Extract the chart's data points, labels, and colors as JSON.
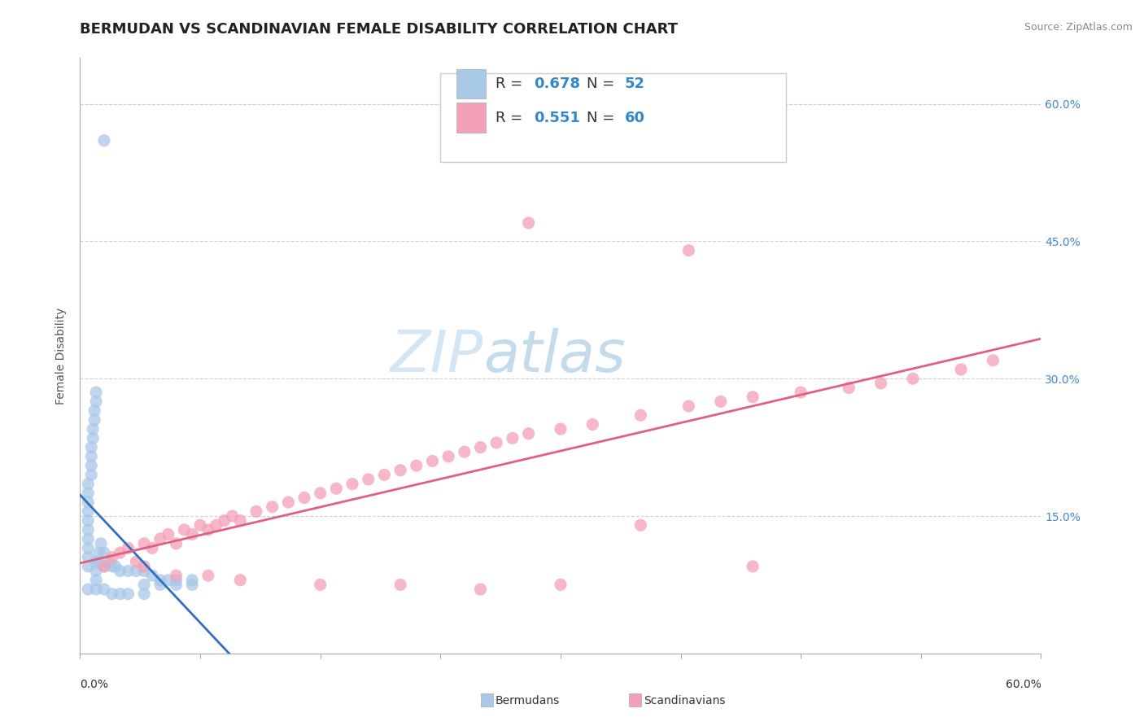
{
  "title": "BERMUDAN VS SCANDINAVIAN FEMALE DISABILITY CORRELATION CHART",
  "source_text": "Source: ZipAtlas.com",
  "ylabel": "Female Disability",
  "ylabel_right_ticks": [
    "15.0%",
    "30.0%",
    "45.0%",
    "60.0%"
  ],
  "ylabel_right_vals": [
    0.15,
    0.3,
    0.45,
    0.6
  ],
  "xmin": 0.0,
  "xmax": 0.6,
  "ymin": 0.0,
  "ymax": 0.65,
  "bermudans_color": "#a8c8e8",
  "scandinavians_color": "#f4a0b8",
  "bermudans_line_color": "#3070c0",
  "scandinavians_line_color": "#e06080",
  "background_color": "#ffffff",
  "grid_color": "#d0d0d0",
  "title_fontsize": 13,
  "axis_label_fontsize": 10,
  "tick_fontsize": 10,
  "legend_fontsize": 13,
  "bermudans_points": [
    [
      0.005,
      0.095
    ],
    [
      0.005,
      0.105
    ],
    [
      0.005,
      0.115
    ],
    [
      0.005,
      0.125
    ],
    [
      0.005,
      0.135
    ],
    [
      0.005,
      0.145
    ],
    [
      0.005,
      0.155
    ],
    [
      0.005,
      0.165
    ],
    [
      0.005,
      0.175
    ],
    [
      0.005,
      0.185
    ],
    [
      0.007,
      0.195
    ],
    [
      0.007,
      0.205
    ],
    [
      0.007,
      0.215
    ],
    [
      0.007,
      0.225
    ],
    [
      0.008,
      0.235
    ],
    [
      0.008,
      0.245
    ],
    [
      0.009,
      0.255
    ],
    [
      0.009,
      0.265
    ],
    [
      0.01,
      0.275
    ],
    [
      0.01,
      0.285
    ],
    [
      0.01,
      0.08
    ],
    [
      0.01,
      0.09
    ],
    [
      0.01,
      0.1
    ],
    [
      0.012,
      0.1
    ],
    [
      0.012,
      0.11
    ],
    [
      0.013,
      0.12
    ],
    [
      0.015,
      0.11
    ],
    [
      0.015,
      0.095
    ],
    [
      0.018,
      0.1
    ],
    [
      0.02,
      0.095
    ],
    [
      0.022,
      0.095
    ],
    [
      0.025,
      0.09
    ],
    [
      0.03,
      0.09
    ],
    [
      0.035,
      0.09
    ],
    [
      0.04,
      0.09
    ],
    [
      0.045,
      0.085
    ],
    [
      0.05,
      0.08
    ],
    [
      0.055,
      0.08
    ],
    [
      0.06,
      0.08
    ],
    [
      0.07,
      0.08
    ],
    [
      0.015,
      0.56
    ],
    [
      0.04,
      0.075
    ],
    [
      0.05,
      0.075
    ],
    [
      0.06,
      0.075
    ],
    [
      0.07,
      0.075
    ],
    [
      0.005,
      0.07
    ],
    [
      0.01,
      0.07
    ],
    [
      0.015,
      0.07
    ],
    [
      0.02,
      0.065
    ],
    [
      0.025,
      0.065
    ],
    [
      0.03,
      0.065
    ],
    [
      0.04,
      0.065
    ]
  ],
  "scandinavians_points": [
    [
      0.015,
      0.095
    ],
    [
      0.02,
      0.105
    ],
    [
      0.025,
      0.11
    ],
    [
      0.03,
      0.115
    ],
    [
      0.035,
      0.1
    ],
    [
      0.04,
      0.12
    ],
    [
      0.045,
      0.115
    ],
    [
      0.05,
      0.125
    ],
    [
      0.055,
      0.13
    ],
    [
      0.06,
      0.12
    ],
    [
      0.065,
      0.135
    ],
    [
      0.07,
      0.13
    ],
    [
      0.075,
      0.14
    ],
    [
      0.08,
      0.135
    ],
    [
      0.085,
      0.14
    ],
    [
      0.09,
      0.145
    ],
    [
      0.095,
      0.15
    ],
    [
      0.1,
      0.145
    ],
    [
      0.11,
      0.155
    ],
    [
      0.12,
      0.16
    ],
    [
      0.13,
      0.165
    ],
    [
      0.14,
      0.17
    ],
    [
      0.15,
      0.175
    ],
    [
      0.16,
      0.18
    ],
    [
      0.17,
      0.185
    ],
    [
      0.18,
      0.19
    ],
    [
      0.19,
      0.195
    ],
    [
      0.2,
      0.2
    ],
    [
      0.21,
      0.205
    ],
    [
      0.22,
      0.21
    ],
    [
      0.23,
      0.215
    ],
    [
      0.24,
      0.22
    ],
    [
      0.25,
      0.225
    ],
    [
      0.26,
      0.23
    ],
    [
      0.27,
      0.235
    ],
    [
      0.28,
      0.24
    ],
    [
      0.3,
      0.245
    ],
    [
      0.32,
      0.25
    ],
    [
      0.35,
      0.26
    ],
    [
      0.38,
      0.27
    ],
    [
      0.4,
      0.275
    ],
    [
      0.42,
      0.28
    ],
    [
      0.45,
      0.285
    ],
    [
      0.48,
      0.29
    ],
    [
      0.5,
      0.295
    ],
    [
      0.52,
      0.3
    ],
    [
      0.55,
      0.31
    ],
    [
      0.57,
      0.32
    ],
    [
      0.04,
      0.095
    ],
    [
      0.06,
      0.085
    ],
    [
      0.08,
      0.085
    ],
    [
      0.1,
      0.08
    ],
    [
      0.15,
      0.075
    ],
    [
      0.2,
      0.075
    ],
    [
      0.25,
      0.07
    ],
    [
      0.3,
      0.075
    ],
    [
      0.35,
      0.14
    ],
    [
      0.28,
      0.47
    ],
    [
      0.38,
      0.44
    ],
    [
      0.42,
      0.095
    ]
  ]
}
